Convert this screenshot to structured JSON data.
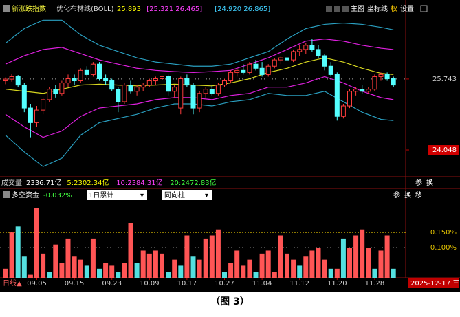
{
  "header": {
    "title": "新涨跌指数",
    "indicator": "优化布林线(BOLL)",
    "readouts": [
      "25.893",
      "[25.321 26.465]",
      "[24.920 26.865]"
    ],
    "readout_colors": [
      "#ffff00",
      "#ff40ff",
      "#40d0ff"
    ],
    "tools": [
      "主图",
      "坐标线",
      "权",
      "设置"
    ]
  },
  "volume_row": {
    "items": [
      "成交量",
      "2336.71亿",
      "5:2302.34亿",
      "10:2384.31亿",
      "20:2472.83亿"
    ],
    "colors": [
      "#dddddd",
      "#ffffff",
      "#ffff00",
      "#ff40ff",
      "#40ff40"
    ],
    "tools": [
      "参",
      "换"
    ]
  },
  "flow_header": {
    "title": "多空资金",
    "value": "-0.032%",
    "selects": [
      "1日累计",
      "同向柱"
    ],
    "tools": [
      "参",
      "换",
      "移"
    ]
  },
  "footer": {
    "period": "日线▲",
    "date": "2025-12-17 三"
  },
  "caption": "（图 3）",
  "chart_data": [
    {
      "type": "candlestick",
      "open": [
        25.7,
        25.74,
        25.8,
        25.6,
        25.05,
        24.7,
        25.0,
        25.25,
        25.5,
        25.4,
        25.65,
        25.75,
        25.7,
        25.95,
        25.85,
        26.1,
        25.75,
        25.7,
        25.5,
        25.2,
        25.6,
        25.45,
        25.55,
        25.6,
        25.7,
        25.75,
        25.8,
        25.45,
        25.05,
        25.75,
        25.6,
        25.05,
        25.4,
        25.5,
        25.4,
        25.6,
        25.7,
        25.9,
        25.95,
        25.9,
        26.1,
        26.0,
        25.85,
        26.05,
        26.2,
        26.25,
        26.2,
        26.4,
        26.45,
        26.55,
        26.45,
        26.3,
        26.05,
        25.85,
        24.85,
        25.1,
        25.45,
        25.5,
        25.45,
        25.5,
        25.8,
        25.85,
        25.75
      ],
      "high": [
        25.78,
        25.86,
        25.84,
        25.65,
        25.15,
        25.1,
        25.3,
        25.55,
        25.6,
        25.7,
        25.85,
        25.85,
        26.0,
        26.05,
        26.15,
        26.15,
        25.85,
        25.75,
        25.55,
        25.65,
        25.7,
        25.6,
        25.65,
        25.75,
        25.8,
        25.85,
        25.85,
        25.6,
        25.8,
        25.85,
        25.65,
        25.45,
        25.55,
        25.6,
        25.65,
        25.75,
        25.95,
        26.0,
        26.1,
        26.15,
        26.2,
        26.15,
        26.1,
        26.25,
        26.3,
        26.35,
        26.45,
        26.55,
        26.6,
        26.7,
        26.55,
        26.35,
        26.15,
        25.9,
        25.15,
        25.5,
        25.55,
        25.6,
        25.55,
        25.85,
        25.9,
        25.9,
        25.8
      ],
      "low": [
        25.62,
        25.68,
        25.55,
        24.95,
        24.35,
        24.6,
        24.9,
        25.2,
        25.3,
        25.35,
        25.55,
        25.6,
        25.65,
        25.8,
        25.8,
        25.7,
        25.6,
        25.45,
        24.95,
        25.15,
        25.4,
        25.35,
        25.45,
        25.55,
        25.6,
        25.65,
        25.35,
        25.3,
        24.9,
        25.55,
        24.9,
        24.95,
        25.3,
        25.35,
        25.35,
        25.55,
        25.65,
        25.8,
        25.85,
        25.85,
        25.95,
        25.8,
        25.8,
        26.0,
        26.1,
        26.15,
        26.15,
        26.3,
        26.35,
        26.4,
        26.25,
        25.95,
        25.8,
        24.75,
        24.8,
        25.05,
        25.35,
        25.4,
        25.4,
        25.45,
        25.7,
        25.7,
        25.55
      ],
      "close": [
        25.74,
        25.8,
        25.6,
        25.05,
        24.7,
        25.0,
        25.25,
        25.5,
        25.4,
        25.65,
        25.75,
        25.7,
        25.95,
        25.85,
        26.1,
        25.75,
        25.7,
        25.5,
        25.2,
        25.6,
        25.45,
        25.55,
        25.6,
        25.7,
        25.75,
        25.8,
        25.45,
        25.55,
        25.75,
        25.6,
        25.05,
        25.4,
        25.5,
        25.4,
        25.6,
        25.7,
        25.9,
        25.95,
        25.9,
        26.1,
        26.0,
        25.85,
        26.05,
        26.2,
        26.25,
        26.2,
        26.4,
        26.45,
        26.55,
        26.45,
        26.3,
        26.05,
        25.85,
        24.85,
        25.1,
        25.45,
        25.5,
        25.45,
        25.5,
        25.8,
        25.85,
        25.75,
        25.6
      ],
      "up_color": "#ff3c3c",
      "down_color": "#54ffff",
      "ylim": [
        23.44,
        27.55
      ],
      "yticks": [
        25.743,
        24.048
      ],
      "price_line": 25.743,
      "line_x": [
        0,
        3,
        6,
        9,
        12,
        15,
        18,
        21,
        24,
        27,
        30,
        33,
        36,
        39,
        42,
        45,
        48,
        51,
        54,
        57,
        60,
        62
      ],
      "series": [
        {
          "color": "#2a9fc0",
          "values": [
            26.6,
            26.95,
            27.15,
            27.15,
            26.8,
            26.55,
            26.4,
            26.25,
            26.15,
            26.1,
            26.05,
            26.05,
            26.1,
            26.25,
            26.4,
            26.7,
            26.95,
            27.05,
            27.08,
            27.05,
            26.98,
            26.92
          ]
        },
        {
          "color": "#e020e0",
          "values": [
            26.1,
            26.3,
            26.45,
            26.5,
            26.35,
            26.2,
            26.1,
            26.0,
            25.95,
            25.92,
            25.9,
            25.92,
            25.95,
            26.1,
            26.25,
            26.45,
            26.65,
            26.7,
            26.65,
            26.55,
            26.48,
            26.45
          ]
        },
        {
          "color": "#d8d820",
          "values": [
            25.5,
            25.45,
            25.4,
            25.5,
            25.6,
            25.62,
            25.6,
            25.58,
            25.6,
            25.62,
            25.6,
            25.58,
            25.65,
            25.75,
            25.9,
            26.0,
            26.15,
            26.25,
            26.15,
            26.0,
            25.88,
            25.85
          ]
        },
        {
          "color": "#e020e0",
          "values": [
            24.9,
            24.6,
            24.35,
            24.5,
            24.85,
            25.05,
            25.1,
            25.15,
            25.25,
            25.3,
            25.3,
            25.25,
            25.35,
            25.4,
            25.55,
            25.55,
            25.65,
            25.8,
            25.65,
            25.45,
            25.3,
            25.25
          ]
        },
        {
          "color": "#2a9fc0",
          "values": [
            24.4,
            24.0,
            23.65,
            23.85,
            24.4,
            24.7,
            24.8,
            24.9,
            25.05,
            25.15,
            25.15,
            25.1,
            25.2,
            25.25,
            25.4,
            25.35,
            25.35,
            25.45,
            25.2,
            24.95,
            24.78,
            24.75
          ]
        }
      ]
    },
    {
      "type": "bar",
      "categories": [
        null,
        null,
        null,
        null,
        null,
        "09.05",
        null,
        null,
        null,
        null,
        null,
        "09.15",
        null,
        null,
        null,
        null,
        null,
        "09.23",
        null,
        null,
        null,
        null,
        null,
        "10.09",
        null,
        null,
        null,
        null,
        null,
        "10.17",
        null,
        null,
        null,
        null,
        null,
        "10.27",
        null,
        null,
        null,
        null,
        null,
        "11.04",
        null,
        null,
        null,
        null,
        null,
        "11.12",
        null,
        null,
        null,
        null,
        null,
        "11.20",
        null,
        null,
        null,
        null,
        null,
        "11.28",
        null,
        null,
        null
      ],
      "values": [
        0.03,
        0.15,
        0.17,
        0.07,
        0.01,
        0.23,
        0.08,
        0.02,
        0.11,
        0.05,
        0.13,
        0.07,
        0.06,
        0.04,
        0.13,
        0.03,
        0.05,
        0.04,
        0.02,
        0.05,
        0.18,
        0.05,
        0.09,
        0.08,
        0.09,
        0.08,
        0.02,
        0.06,
        0.04,
        0.14,
        0.07,
        0.06,
        0.13,
        0.14,
        0.16,
        0.02,
        0.05,
        0.09,
        0.04,
        0.06,
        0.02,
        0.08,
        0.09,
        0.02,
        0.14,
        0.08,
        0.06,
        0.04,
        0.07,
        0.09,
        0.1,
        0.06,
        0.03,
        0.03,
        0.13,
        0.1,
        0.14,
        0.16,
        0.1,
        0.03,
        0.09,
        0.14,
        0.03
      ],
      "colors": [
        "r",
        "r",
        "c",
        "c",
        "r",
        "r",
        "r",
        "c",
        "r",
        "r",
        "r",
        "r",
        "r",
        "c",
        "r",
        "c",
        "r",
        "r",
        "c",
        "r",
        "r",
        "c",
        "r",
        "r",
        "r",
        "r",
        "c",
        "r",
        "c",
        "r",
        "c",
        "r",
        "r",
        "r",
        "r",
        "c",
        "r",
        "r",
        "r",
        "r",
        "c",
        "r",
        "r",
        "r",
        "r",
        "r",
        "r",
        "c",
        "r",
        "r",
        "r",
        "r",
        "c",
        "r",
        "c",
        "r",
        "r",
        "r",
        "r",
        "c",
        "r",
        "r",
        "c"
      ],
      "color_map": {
        "r": "#ff5555",
        "c": "#54e0e0"
      },
      "ylim": [
        0,
        0.255
      ],
      "yticks": [
        {
          "value": 0.1,
          "label": "0.100%"
        },
        {
          "value": 0.15,
          "label": "0.150%"
        }
      ]
    }
  ]
}
